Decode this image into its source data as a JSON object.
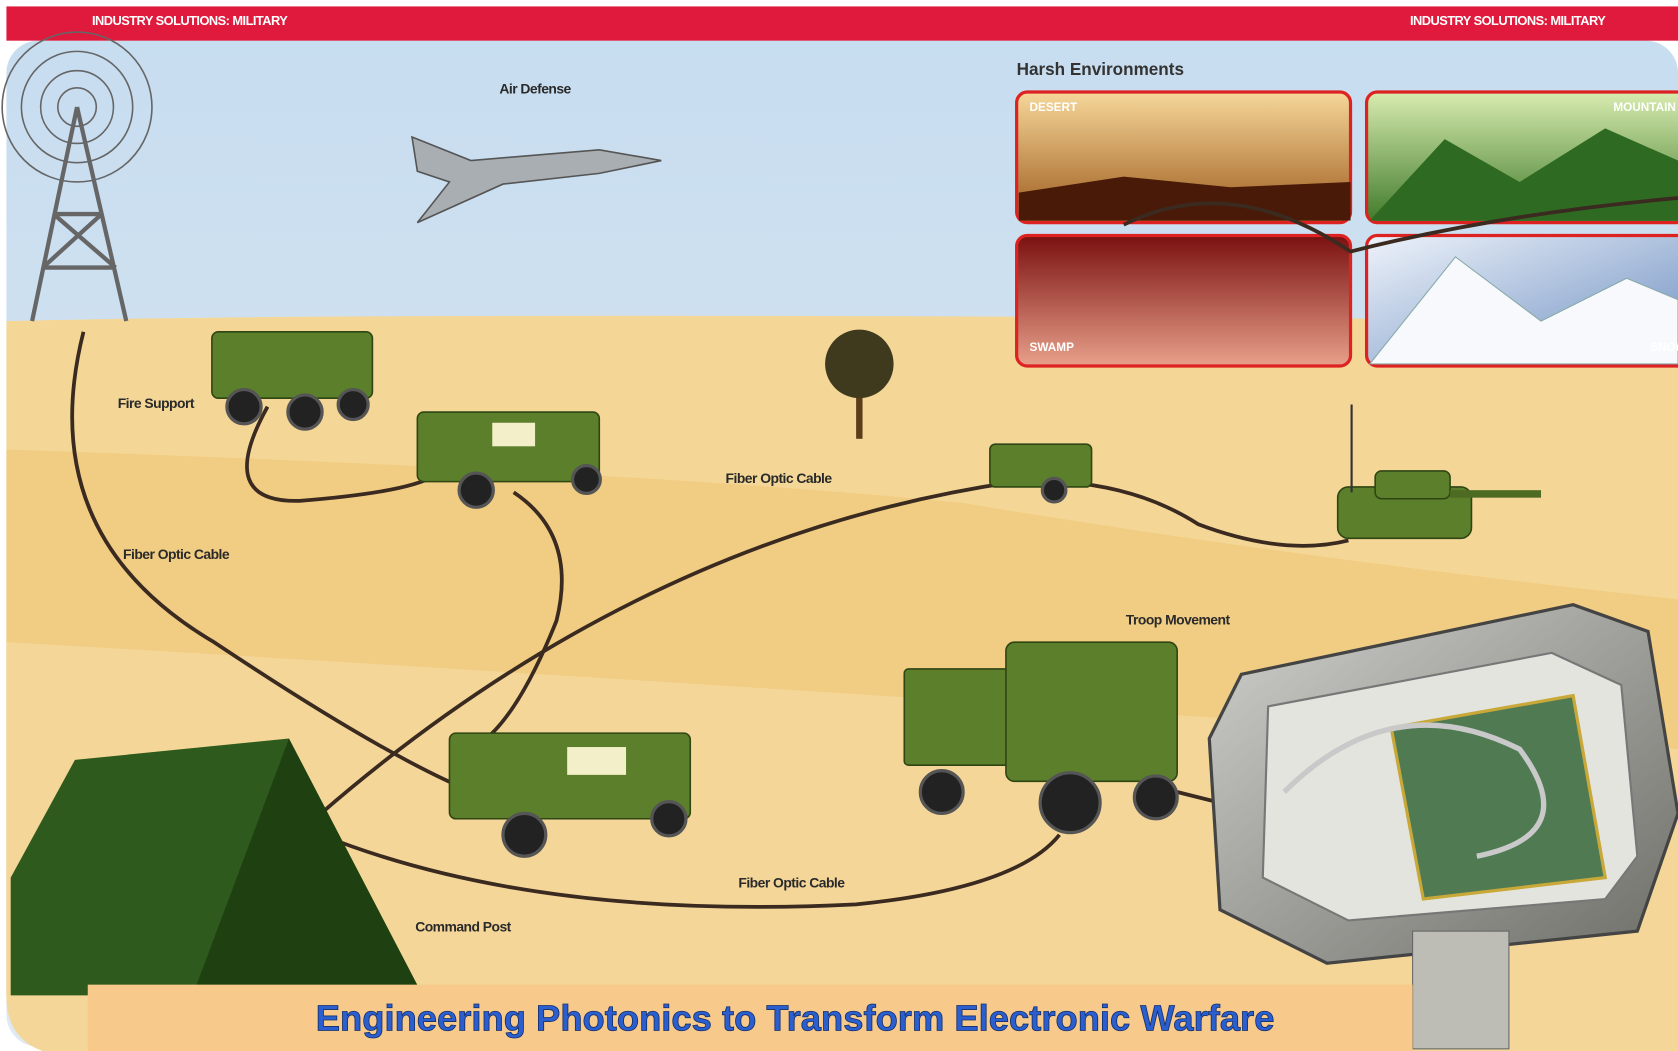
{
  "header": {
    "left": "INDUSTRY SOLUTIONS: MILITARY",
    "right": "INDUSTRY SOLUTIONS: MILITARY"
  },
  "scene": {
    "air_defense": "Air Defense",
    "harsh_environments": {
      "title": "Harsh Environments",
      "panels": [
        "DESERT",
        "MOUNTAIN",
        "SWAMP",
        "SNOW"
      ]
    },
    "labels": {
      "fire_support": "Fire Support",
      "cable_1": "Fiber Optic Cable",
      "cable_2": "Fiber Optic Cable",
      "cable_3": "Fiber Optic Cable",
      "troop_movement": "Troop Movement",
      "command_post": "Command Post"
    }
  },
  "banner": {
    "title": "Engineering Photonics to Transform Electronic Warfare"
  }
}
